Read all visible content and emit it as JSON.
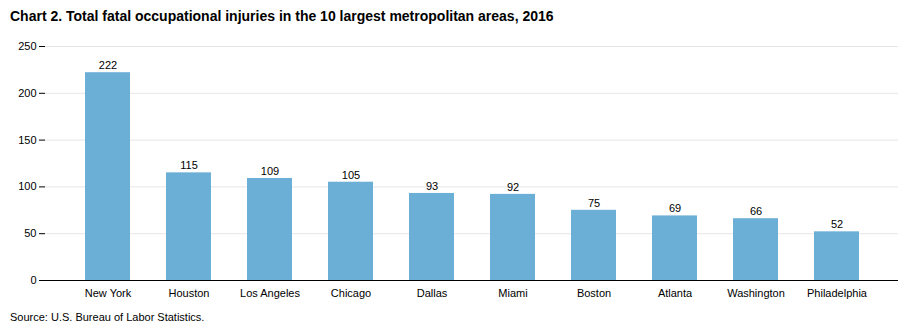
{
  "chart_data": {
    "type": "bar",
    "title": "Chart 2. Total fatal occupational injuries in the 10 largest metropolitan areas, 2016",
    "categories": [
      "New York",
      "Houston",
      "Los Angeles",
      "Chicago",
      "Dallas",
      "Miami",
      "Boston",
      "Atlanta",
      "Washington",
      "Philadelphia"
    ],
    "values": [
      222,
      115,
      109,
      105,
      93,
      92,
      75,
      69,
      66,
      52
    ],
    "color": "#6BAED6",
    "ylim": [
      0,
      250
    ],
    "yticks": [
      0,
      50,
      100,
      150,
      200,
      250
    ],
    "grid": true,
    "data_labels": true,
    "annotations": [
      "Source: U.S. Bureau of Labor Statistics."
    ]
  }
}
